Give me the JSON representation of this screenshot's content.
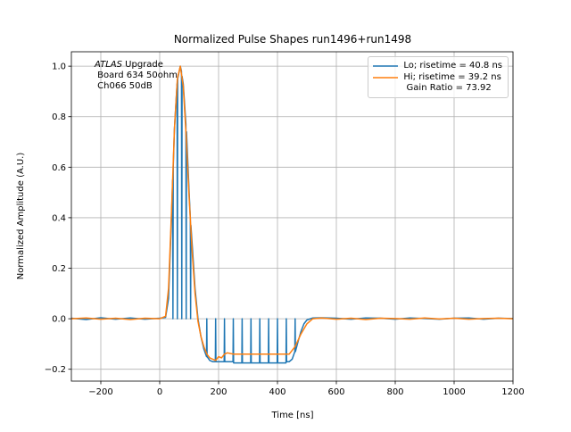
{
  "chart_data": {
    "type": "line",
    "title": "Normalized Pulse Shapes run1496+run1498",
    "x_label": "Time [ns]",
    "y_label": "Normalized Amplitude (A.U.)",
    "annotation": {
      "italic": "ATLAS",
      "text": " Upgrade\n Board 634 50ohm\n Ch066 50dB"
    },
    "xlim": [
      -300,
      1200
    ],
    "ylim": [
      -0.247,
      1.057
    ],
    "xticks": [
      {
        "value": -200,
        "label": "−200"
      },
      0,
      200,
      400,
      600,
      800,
      1000,
      1200
    ],
    "yticks": [
      {
        "value": -0.2,
        "label": "−0.2"
      },
      {
        "value": 0,
        "label": "0.0"
      },
      0.2,
      0.4,
      0.6,
      0.8,
      {
        "value": 1,
        "label": "1.0"
      }
    ],
    "grid": true,
    "legend": "upper right",
    "series": [
      {
        "name": "Lo; risetime = 40.8 ns",
        "color": "#1f77b4",
        "x": [
          -300,
          -250,
          -200,
          -150,
          -100,
          -50,
          0,
          20,
          30,
          40,
          44,
          45,
          46,
          50,
          59,
          60,
          61,
          70,
          74,
          75,
          76,
          80,
          89,
          90,
          91,
          100,
          104,
          105,
          106,
          110,
          120,
          130,
          140,
          150,
          159,
          160,
          161,
          170,
          180,
          189,
          190,
          191,
          219,
          220,
          221,
          249,
          250,
          251,
          279,
          280,
          281,
          309,
          310,
          311,
          339,
          340,
          341,
          369,
          370,
          371,
          399,
          400,
          401,
          429,
          430,
          431,
          440,
          450,
          459,
          460,
          461,
          470,
          480,
          490,
          500,
          520,
          550,
          600,
          650,
          700,
          750,
          800,
          850,
          900,
          950,
          1000,
          1050,
          1100,
          1150,
          1200
        ],
        "values": [
          0.002,
          -0.003,
          0.004,
          -0.002,
          0.003,
          -0.002,
          0.002,
          0.005,
          0.08,
          0.4,
          0.55,
          0,
          0.6,
          0.75,
          0.93,
          0,
          0.95,
          1.0,
          0.98,
          0,
          0.96,
          0.93,
          0.77,
          0,
          0.74,
          0.5,
          0.4,
          0,
          0.37,
          0.3,
          0.12,
          0.0,
          -0.07,
          -0.12,
          -0.15,
          0,
          -0.15,
          -0.165,
          -0.17,
          -0.17,
          0,
          -0.17,
          -0.17,
          0,
          -0.17,
          -0.17,
          0,
          -0.175,
          -0.175,
          0,
          -0.175,
          -0.175,
          0,
          -0.175,
          -0.175,
          0,
          -0.175,
          -0.175,
          0,
          -0.175,
          -0.175,
          0,
          -0.175,
          -0.175,
          0,
          -0.17,
          -0.17,
          -0.16,
          -0.13,
          0,
          -0.13,
          -0.09,
          -0.05,
          -0.02,
          -0.005,
          0.003,
          0.004,
          0.002,
          -0.002,
          0.003,
          0.002,
          -0.002,
          0.003,
          0.001,
          -0.002,
          0.002,
          0.003,
          -0.002,
          0.002,
          0.001
        ]
      },
      {
        "name": "Hi; risetime = 39.2 ns\n Gain Ratio = 73.92",
        "color": "#ff7f0e",
        "x": [
          -300,
          -250,
          -200,
          -150,
          -100,
          -50,
          0,
          20,
          30,
          40,
          50,
          60,
          70,
          80,
          90,
          100,
          110,
          120,
          130,
          140,
          150,
          160,
          170,
          180,
          190,
          200,
          210,
          220,
          230,
          250,
          300,
          350,
          400,
          440,
          460,
          480,
          500,
          520,
          550,
          600,
          650,
          700,
          750,
          800,
          850,
          900,
          950,
          1000,
          1050,
          1100,
          1150,
          1200
        ],
        "values": [
          0,
          0.003,
          -0.002,
          0.002,
          -0.003,
          0.002,
          0,
          0.01,
          0.12,
          0.42,
          0.75,
          0.95,
          1.0,
          0.92,
          0.72,
          0.48,
          0.27,
          0.1,
          -0.01,
          -0.07,
          -0.11,
          -0.14,
          -0.155,
          -0.16,
          -0.165,
          -0.15,
          -0.155,
          -0.14,
          -0.135,
          -0.14,
          -0.14,
          -0.14,
          -0.14,
          -0.14,
          -0.11,
          -0.06,
          -0.02,
          0,
          0.003,
          -0.002,
          0.002,
          -0.003,
          0.002,
          0.001,
          -0.002,
          0.003,
          -0.001,
          0.002,
          -0.002,
          0.001,
          0.002,
          0
        ]
      }
    ]
  }
}
